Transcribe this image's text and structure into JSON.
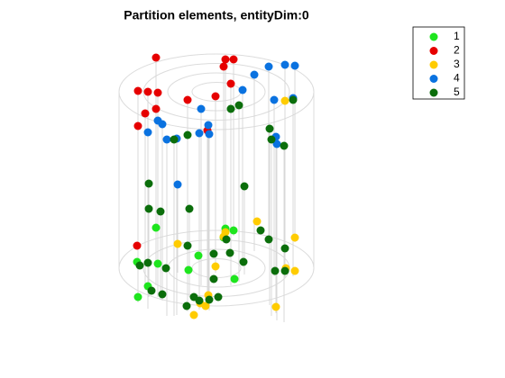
{
  "chart_data": {
    "type": "scatter3d",
    "title": "Partition elements, entityDim:0",
    "series": [
      {
        "name": "1",
        "color": "#1ee51e",
        "x": [
          -67,
          10,
          19,
          8,
          -88,
          -65,
          -31,
          -20,
          -76,
          20,
          -87
        ],
        "y": [
          -45,
          -44,
          -42,
          -34,
          -7,
          -5,
          2,
          -14,
          20,
          12,
          32
        ],
        "z": [
          0,
          0,
          0,
          0,
          0,
          0,
          0,
          0,
          0,
          0,
          0
        ]
      },
      {
        "name": "2",
        "color": "#e60000",
        "x": [
          -67,
          10,
          19,
          8,
          16,
          -87,
          -76,
          -65,
          -32,
          -1,
          -67,
          -79,
          -87,
          -10,
          -88
        ],
        "y": [
          -38,
          -36,
          -36,
          -28,
          -9,
          -1,
          0,
          1,
          9,
          5,
          19,
          24,
          38,
          43,
          -25
        ],
        "z": [
          1,
          1,
          1,
          1,
          1,
          1,
          1,
          1,
          1,
          1,
          1,
          1,
          1,
          1,
          0
        ]
      },
      {
        "name": "3",
        "color": "#ffcc00",
        "x": [
          76,
          45,
          10,
          8,
          -43,
          87,
          -1,
          77,
          87,
          -9,
          -18,
          -12,
          66,
          -25
        ],
        "y": [
          10,
          -52,
          -40,
          -35,
          -27,
          -34,
          -2,
          0,
          3,
          30,
          39,
          42,
          43,
          52
        ],
        "z": [
          1,
          0,
          0,
          0,
          0,
          0,
          0,
          0,
          0,
          0,
          0,
          0,
          0,
          0
        ]
      },
      {
        "name": "4",
        "color": "#0a72e0",
        "x": [
          87,
          76,
          58,
          42,
          29,
          64,
          85,
          -17,
          -65,
          -60,
          -76,
          -55,
          -44,
          -19,
          -9,
          -8,
          66,
          67,
          -43
        ],
        "y": [
          -29,
          -30,
          -28,
          -19,
          -2,
          9,
          7,
          19,
          32,
          36,
          45,
          53,
          52,
          46,
          37,
          47,
          50,
          58,
          5
        ],
        "z": [
          1,
          1,
          1,
          1,
          1,
          1,
          1,
          1,
          1,
          1,
          1,
          1,
          1,
          1,
          1,
          1,
          1,
          1,
          0.5
        ]
      },
      {
        "name": "5",
        "color": "#0b6e0b",
        "x": [
          16,
          25,
          85,
          59,
          61,
          75,
          -47,
          -32,
          -75,
          31,
          -75,
          -62,
          -30,
          49,
          58,
          76,
          -32,
          -3,
          11,
          15,
          30,
          -85,
          -76,
          -56,
          -3,
          65,
          76,
          -72,
          -60,
          -19,
          -8,
          2,
          -33,
          -25
        ],
        "y": [
          19,
          15,
          9,
          41,
          53,
          60,
          53,
          48,
          4,
          7,
          32,
          35,
          32,
          -42,
          -32,
          -22,
          -25,
          -16,
          -32,
          -17,
          -7,
          -3,
          -6,
          0,
          12,
          3,
          3,
          25,
          29,
          36,
          35,
          32,
          42,
          32
        ],
        "z": [
          1,
          1,
          1,
          1,
          1,
          1,
          1,
          1,
          0.5,
          0.5,
          0.5,
          0.5,
          0.5,
          0,
          0,
          0,
          0,
          0,
          0,
          0,
          0,
          0,
          0,
          0,
          0,
          0,
          0,
          0,
          0,
          0,
          0,
          0,
          0,
          0
        ]
      }
    ],
    "legend": "upper right"
  }
}
